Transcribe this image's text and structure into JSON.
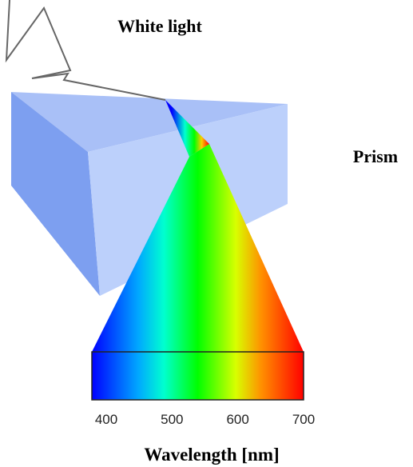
{
  "labels": {
    "light": "White light",
    "prism": "Prism"
  },
  "scale": {
    "label": "Wavelength [nm]",
    "ticks": [
      400,
      500,
      600,
      700
    ]
  }
}
